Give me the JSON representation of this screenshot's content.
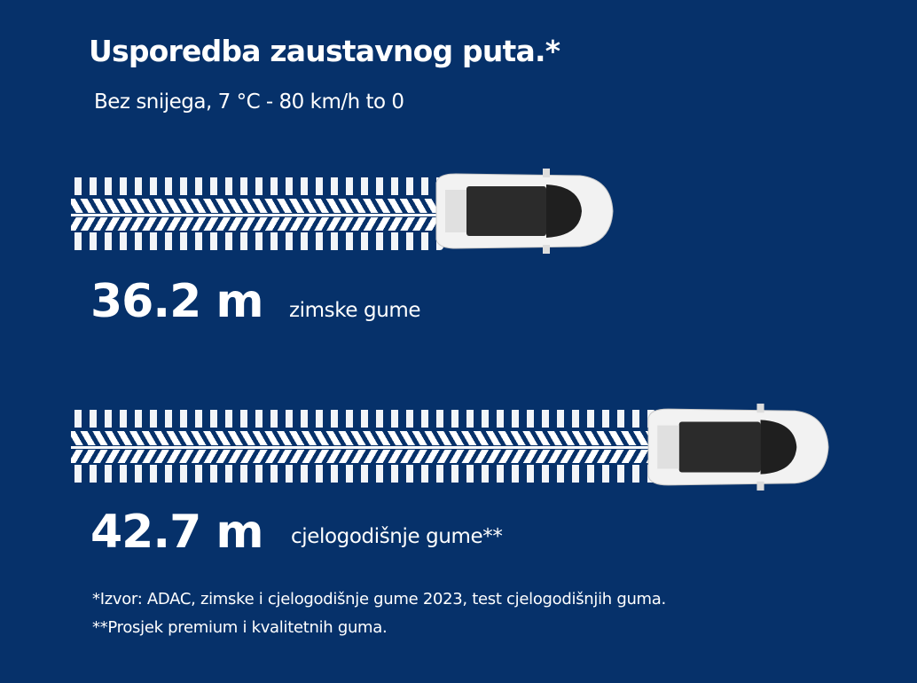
{
  "title": "Usporedba zaustavnog puta.*",
  "subtitle": "Bez snijega, 7 °C - 80 km/h to 0",
  "results": [
    {
      "distance": "36.2 m",
      "label": "zimske gume",
      "distance_m": 36.2
    },
    {
      "distance": "42.7 m",
      "label": "cjelogodišnje gume**",
      "distance_m": 42.7
    }
  ],
  "footnotes": [
    "*Izvor: ADAC, zimske i cjelogodišnje gume 2023, test cjelogodišnjih guma.",
    "**Prosjek premium i kvalitetnih guma."
  ],
  "colors": {
    "background": "#06316a",
    "text": "#ffffff"
  }
}
